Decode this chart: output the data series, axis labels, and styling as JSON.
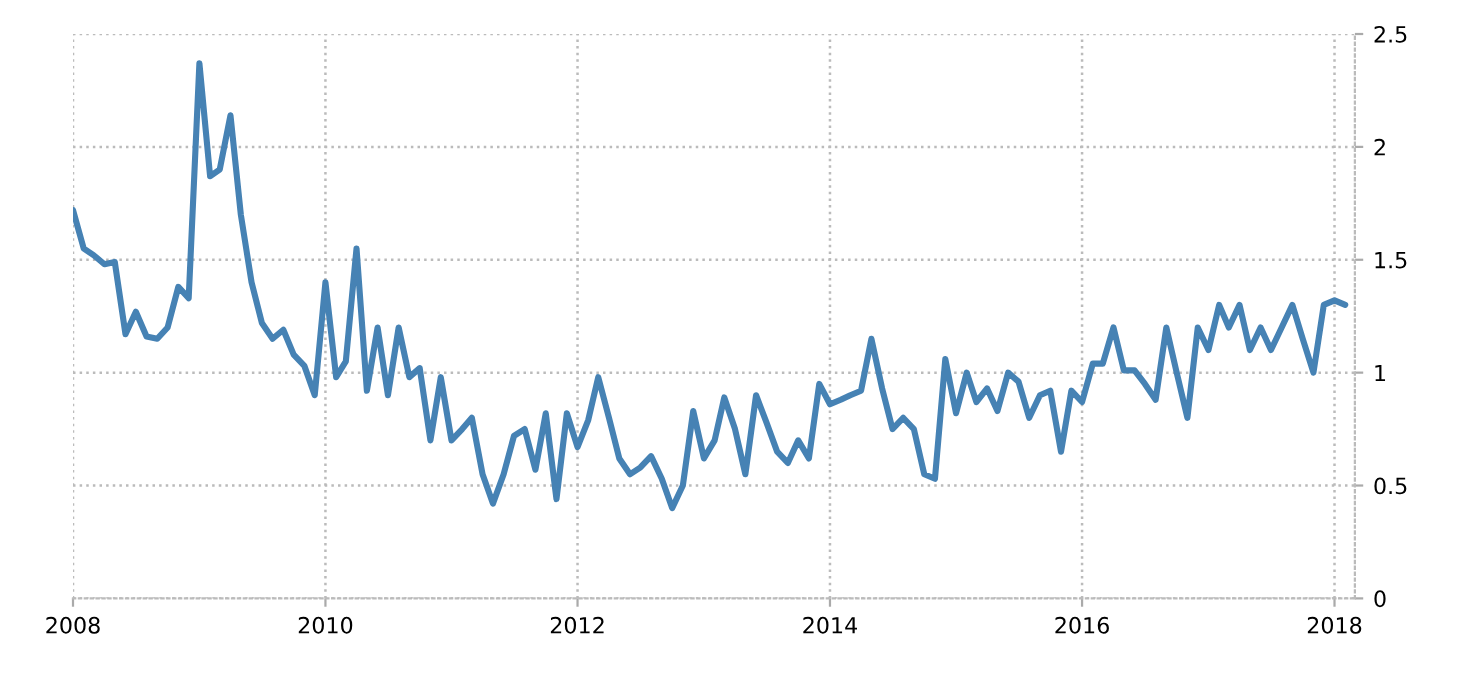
{
  "chart_data": {
    "type": "line",
    "x": [
      "2008-01",
      "2008-02",
      "2008-03",
      "2008-04",
      "2008-05",
      "2008-06",
      "2008-07",
      "2008-08",
      "2008-09",
      "2008-10",
      "2008-11",
      "2008-12",
      "2009-01",
      "2009-02",
      "2009-03",
      "2009-04",
      "2009-05",
      "2009-06",
      "2009-07",
      "2009-08",
      "2009-09",
      "2009-10",
      "2009-11",
      "2009-12",
      "2010-01",
      "2010-02",
      "2010-03",
      "2010-04",
      "2010-05",
      "2010-06",
      "2010-07",
      "2010-08",
      "2010-09",
      "2010-10",
      "2010-11",
      "2010-12",
      "2011-01",
      "2011-02",
      "2011-03",
      "2011-04",
      "2011-05",
      "2011-06",
      "2011-07",
      "2011-08",
      "2011-09",
      "2011-10",
      "2011-11",
      "2011-12",
      "2012-01",
      "2012-02",
      "2012-03",
      "2012-04",
      "2012-05",
      "2012-06",
      "2012-07",
      "2012-08",
      "2012-09",
      "2012-10",
      "2012-11",
      "2012-12",
      "2013-01",
      "2013-02",
      "2013-03",
      "2013-04",
      "2013-05",
      "2013-06",
      "2013-07",
      "2013-08",
      "2013-09",
      "2013-10",
      "2013-11",
      "2013-12",
      "2014-01",
      "2014-02",
      "2014-03",
      "2014-04",
      "2014-05",
      "2014-06",
      "2014-07",
      "2014-08",
      "2014-09",
      "2014-10",
      "2014-11",
      "2014-12",
      "2015-01",
      "2015-02",
      "2015-03",
      "2015-04",
      "2015-05",
      "2015-06",
      "2015-07",
      "2015-08",
      "2015-09",
      "2015-10",
      "2015-11",
      "2015-12",
      "2016-01",
      "2016-02",
      "2016-03",
      "2016-04",
      "2016-05",
      "2016-06",
      "2016-07",
      "2016-08",
      "2016-09",
      "2016-10",
      "2016-11",
      "2016-12",
      "2017-01",
      "2017-02",
      "2017-03",
      "2017-04",
      "2017-05",
      "2017-06",
      "2017-07",
      "2017-08",
      "2017-09",
      "2017-10",
      "2017-11",
      "2017-12",
      "2018-01",
      "2018-02"
    ],
    "series": [
      {
        "color": "#4682b4",
        "values": [
          1.72,
          1.55,
          1.52,
          1.48,
          1.49,
          1.17,
          1.27,
          1.16,
          1.15,
          1.2,
          1.38,
          1.33,
          2.37,
          1.87,
          1.9,
          2.14,
          1.7,
          1.4,
          1.22,
          1.15,
          1.19,
          1.08,
          1.03,
          0.9,
          1.4,
          0.98,
          1.05,
          1.55,
          0.92,
          1.2,
          0.9,
          1.2,
          0.98,
          1.02,
          0.7,
          0.98,
          0.7,
          0.75,
          0.8,
          0.55,
          0.42,
          0.55,
          0.72,
          0.75,
          0.57,
          0.82,
          0.44,
          0.82,
          0.67,
          0.79,
          0.98,
          0.8,
          0.62,
          0.55,
          0.58,
          0.63,
          0.53,
          0.4,
          0.5,
          0.83,
          0.62,
          0.7,
          0.89,
          0.75,
          0.55,
          0.9,
          0.78,
          0.65,
          0.6,
          0.7,
          0.62,
          0.95,
          0.86,
          0.88,
          0.9,
          0.92,
          1.15,
          0.93,
          0.75,
          0.8,
          0.75,
          0.55,
          0.53,
          1.06,
          0.82,
          1.0,
          0.87,
          0.93,
          0.83,
          1.0,
          0.96,
          0.8,
          0.9,
          0.92,
          0.65,
          0.92,
          0.87,
          1.04,
          1.04,
          1.2,
          1.01,
          1.01,
          0.95,
          0.88,
          1.2,
          1.0,
          0.8,
          1.2,
          1.1,
          1.3,
          1.2,
          1.3,
          1.1,
          1.2,
          1.1,
          1.2,
          1.3,
          1.15,
          1.0,
          1.3,
          1.32,
          1.3
        ]
      }
    ],
    "xlim": [
      "2008-01",
      "2018-03"
    ],
    "xticks": [
      "2008",
      "2010",
      "2012",
      "2014",
      "2016",
      "2018"
    ],
    "ylim": [
      0,
      2.5
    ],
    "yticks": [
      0,
      0.5,
      1,
      1.5,
      2,
      2.5
    ],
    "grid": true,
    "line_style": "solid",
    "marker": "none"
  }
}
